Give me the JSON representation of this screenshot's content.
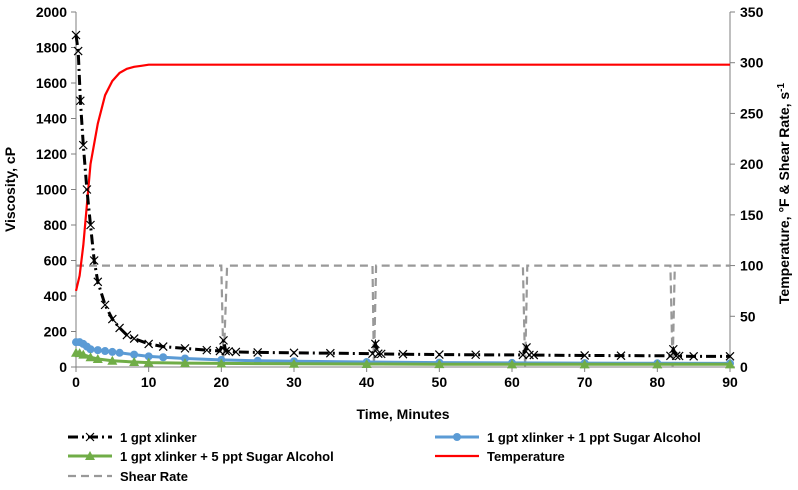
{
  "chart_data": {
    "type": "line",
    "xlabel": "Time, Minutes",
    "ylabel": "Viscosity, cP",
    "y2label_main": "Temperature, °F & Shear Rate, s",
    "y2label_sup": "-1",
    "xlim": [
      0,
      90
    ],
    "ylim": [
      0,
      2000
    ],
    "y2lim": [
      0,
      350
    ],
    "x_ticks": [
      0,
      10,
      20,
      30,
      40,
      50,
      60,
      70,
      80,
      90
    ],
    "y_ticks": [
      0,
      200,
      400,
      600,
      800,
      1000,
      1200,
      1400,
      1600,
      1800,
      2000
    ],
    "y2_ticks": [
      0,
      50,
      100,
      150,
      200,
      250,
      300,
      350
    ],
    "grid": false,
    "legend_position": "bottom",
    "series": [
      {
        "name": "1 gpt xlinker",
        "axis": "left",
        "color": "#000000",
        "marker": "x",
        "style": "dashdot",
        "x": [
          0,
          0.3,
          0.6,
          1,
          1.5,
          2,
          2.5,
          3,
          4,
          5,
          6,
          7,
          8,
          10,
          12,
          15,
          18,
          19.8,
          20.3,
          20.6,
          21,
          22,
          25,
          30,
          35,
          40.8,
          41.2,
          41.6,
          42,
          45,
          50,
          55,
          61.5,
          62,
          62.4,
          63,
          70,
          75,
          81.8,
          82.2,
          82.6,
          83,
          85,
          90
        ],
        "y": [
          1870,
          1780,
          1500,
          1250,
          1000,
          800,
          600,
          480,
          350,
          270,
          220,
          180,
          160,
          130,
          115,
          105,
          95,
          90,
          150,
          90,
          88,
          85,
          82,
          80,
          78,
          75,
          130,
          75,
          74,
          72,
          70,
          69,
          68,
          110,
          68,
          67,
          65,
          64,
          63,
          100,
          63,
          62,
          60,
          60
        ]
      },
      {
        "name": "1 gpt xlinker + 1 ppt Sugar Alcohol",
        "axis": "left",
        "color": "#5B9BD5",
        "marker": "circle",
        "style": "solid",
        "x": [
          0,
          0.5,
          1,
          1.5,
          2,
          3,
          4,
          5,
          6,
          8,
          10,
          12,
          15,
          20,
          25,
          30,
          40,
          50,
          60,
          70,
          80,
          90
        ],
        "y": [
          140,
          140,
          130,
          115,
          100,
          95,
          90,
          85,
          80,
          70,
          60,
          55,
          48,
          40,
          35,
          32,
          28,
          25,
          23,
          22,
          21,
          20
        ]
      },
      {
        "name": "1 gpt xlinker + 5 ppt Sugar Alcohol",
        "axis": "left",
        "color": "#70AD47",
        "marker": "triangle",
        "style": "solid",
        "x": [
          0,
          0.5,
          1,
          2,
          3,
          5,
          8,
          10,
          15,
          20,
          30,
          40,
          50,
          60,
          70,
          80,
          90
        ],
        "y": [
          80,
          78,
          70,
          55,
          45,
          35,
          28,
          25,
          22,
          20,
          18,
          17,
          16,
          15,
          15,
          15,
          15
        ]
      },
      {
        "name": "Temperature",
        "axis": "right",
        "color": "#FF0000",
        "marker": "none",
        "style": "solid",
        "x": [
          0,
          0.5,
          1,
          1.5,
          2,
          3,
          4,
          5,
          6,
          7,
          8,
          9,
          10,
          12,
          15,
          20,
          30,
          40,
          50,
          60,
          70,
          80,
          90
        ],
        "y": [
          75,
          90,
          120,
          160,
          200,
          240,
          268,
          282,
          290,
          294,
          296,
          297,
          298,
          298,
          298,
          298,
          298,
          298,
          298,
          298,
          298,
          298,
          298
        ]
      },
      {
        "name": "Shear Rate",
        "axis": "right",
        "color": "#999999",
        "marker": "none",
        "style": "dashed",
        "x": [
          0,
          1,
          2,
          3,
          4,
          20,
          20.3,
          20.8,
          21.2,
          40.8,
          41,
          41.3,
          41.6,
          61.5,
          61.8,
          62.1,
          62.4,
          81.8,
          82.1,
          82.4,
          82.7,
          90
        ],
        "y": [
          100,
          100,
          100,
          100,
          100,
          100,
          0,
          100,
          100,
          100,
          0,
          100,
          100,
          100,
          0,
          100,
          100,
          100,
          0,
          100,
          100,
          100
        ]
      }
    ]
  }
}
